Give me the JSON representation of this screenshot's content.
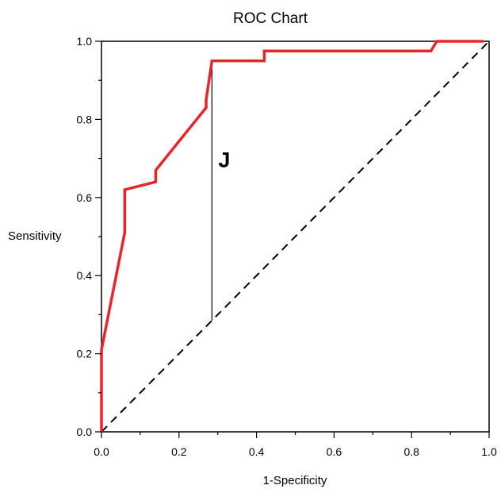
{
  "chart_data": {
    "type": "line",
    "title": "ROC Chart",
    "xlabel": "1-Specificity",
    "ylabel": "Sensitivity",
    "xlim": [
      0.0,
      1.0
    ],
    "ylim": [
      0.0,
      1.0
    ],
    "x_ticks": [
      "0.0",
      "0.2",
      "0.4",
      "0.6",
      "0.8",
      "1.0"
    ],
    "y_ticks": [
      "0.0",
      "0.2",
      "0.4",
      "0.6",
      "0.8",
      "1.0"
    ],
    "grid": false,
    "series": [
      {
        "color": "#e8262a",
        "points": [
          [
            0.0,
            0.0
          ],
          [
            0.0,
            0.21
          ],
          [
            0.06,
            0.51
          ],
          [
            0.06,
            0.62
          ],
          [
            0.14,
            0.64
          ],
          [
            0.14,
            0.67
          ],
          [
            0.27,
            0.83
          ],
          [
            0.27,
            0.85
          ],
          [
            0.285,
            0.95
          ],
          [
            0.42,
            0.95
          ],
          [
            0.42,
            0.975
          ],
          [
            0.85,
            0.975
          ],
          [
            0.865,
            1.0
          ],
          [
            0.985,
            1.0
          ]
        ]
      }
    ],
    "reference_line": {
      "style": "dashed",
      "from": [
        0.0,
        0.0
      ],
      "to": [
        1.0,
        1.0
      ]
    },
    "annotation": {
      "label": "J",
      "x": 0.285,
      "y_from": 0.285,
      "y_to": 0.95
    }
  }
}
